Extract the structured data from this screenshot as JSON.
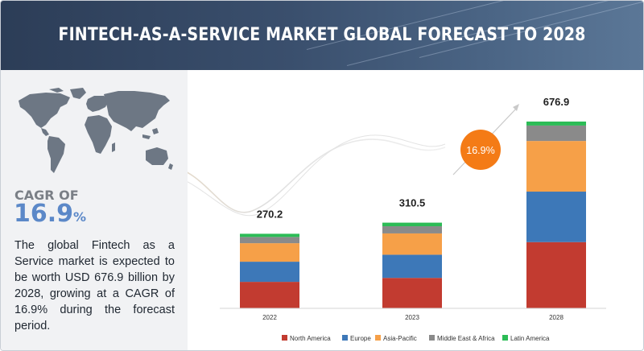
{
  "header": {
    "title": "FINTECH-AS-A-SERVICE MARKET GLOBAL FORECAST TO 2028"
  },
  "left_panel": {
    "cagr_label": "CAGR OF",
    "cagr_number": "16.9",
    "cagr_suffix": "%",
    "description": "The global Fintech as a Service market is expected to be worth USD 676.9 billion by 2028, growing at a CAGR of 16.9% during the forecast period."
  },
  "chart_data": {
    "type": "bar",
    "stacked": true,
    "title": "FINTECH-AS-A-SERVICE MARKET GLOBAL FORECAST TO 2028",
    "units": "USD billion",
    "categories": [
      "2022",
      "2023",
      "2028"
    ],
    "totals": [
      270.2,
      310.5,
      676.9
    ],
    "total_labels": [
      "270.2",
      "310.5",
      "676.9"
    ],
    "series": [
      {
        "name": "North America",
        "values": [
          96.0,
          110.3,
          240.0
        ],
        "color": "#c23b30"
      },
      {
        "name": "Europe",
        "values": [
          73.0,
          84.0,
          183.0
        ],
        "color": "#3d78b8"
      },
      {
        "name": "Asia-Pacific",
        "values": [
          67.0,
          77.2,
          183.5
        ],
        "color": "#f6a048"
      },
      {
        "name": "Middle East & Africa",
        "values": [
          22.6,
          26.0,
          56.0
        ],
        "color": "#8a8a8a"
      },
      {
        "name": "Latin America",
        "values": [
          11.6,
          13.0,
          14.4
        ],
        "color": "#2cbc56"
      }
    ],
    "cagr_bubble": "16.9%",
    "cagr_bubble_color": "#f47b16",
    "ylim": [
      0,
      676.9
    ],
    "xlabel": "",
    "ylabel": "",
    "legend_position": "bottom"
  },
  "colors": {
    "header_bg": "#2c3d57",
    "left_panel_bg": "#f1f2f4",
    "cagr_accent": "#5b88c8",
    "map_fill": "#6d7784"
  }
}
